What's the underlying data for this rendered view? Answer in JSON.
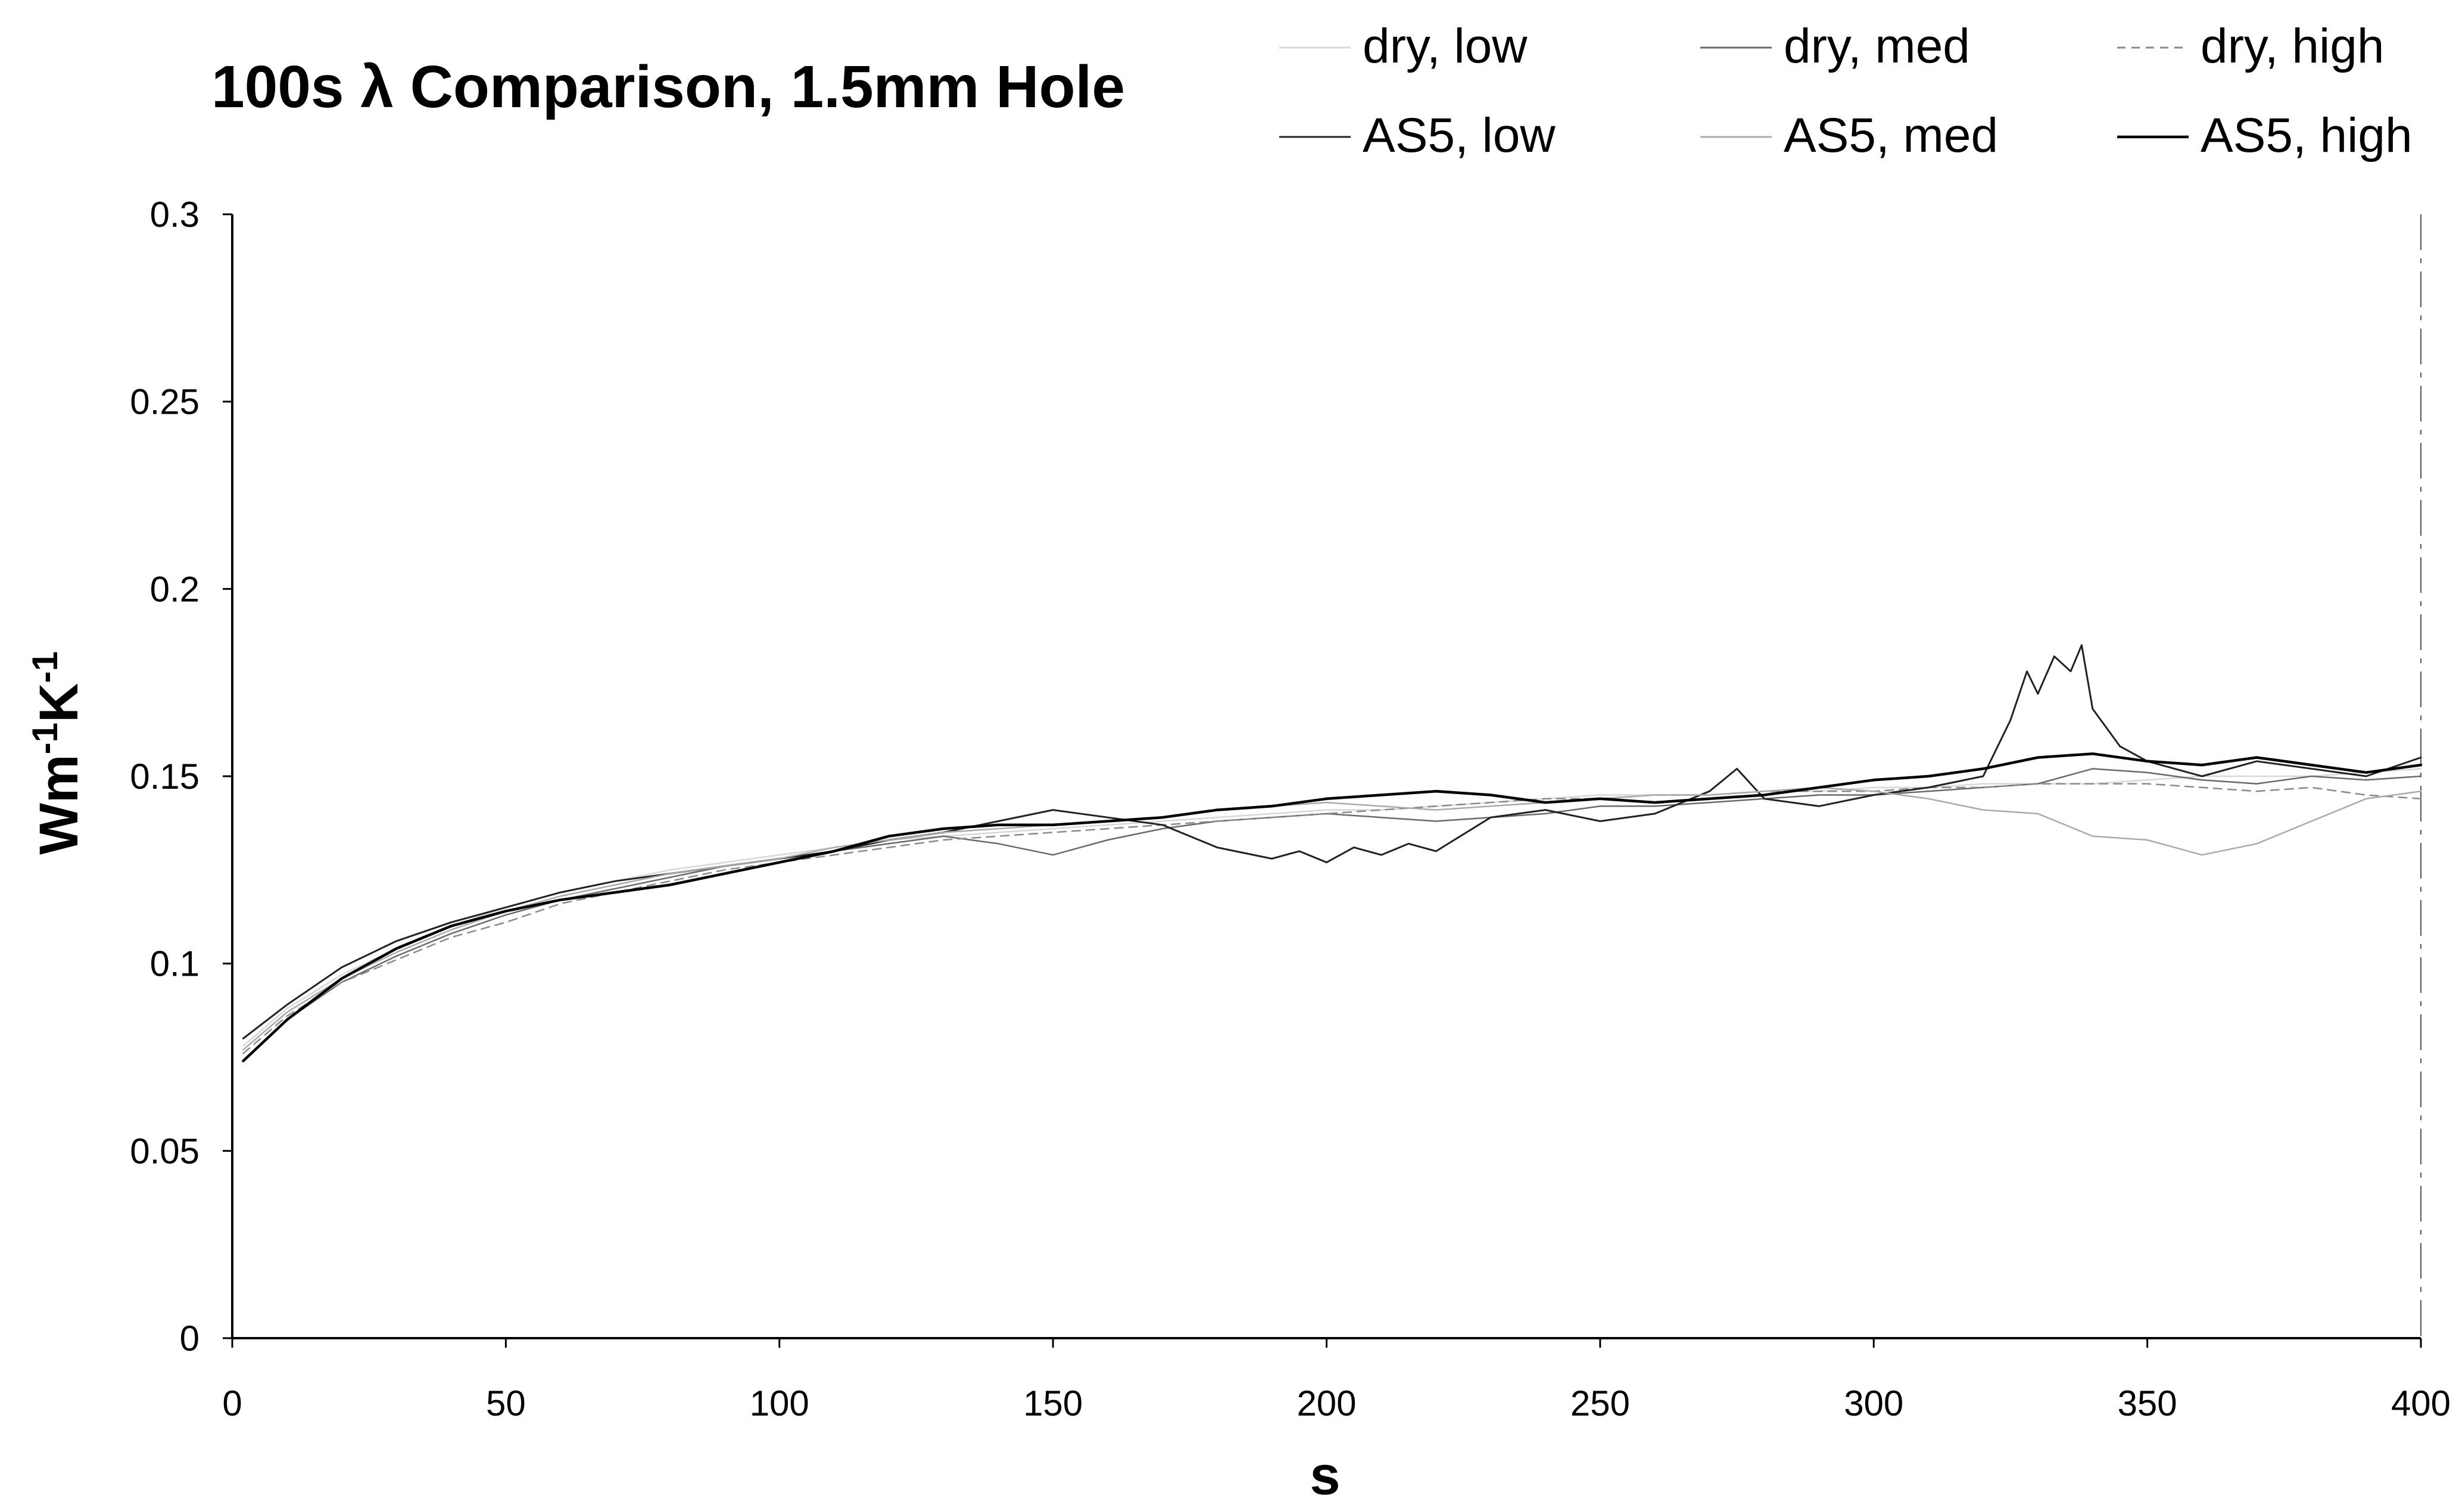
{
  "chart_data": {
    "type": "line",
    "title": "100s λ Comparison, 1.5mm Hole",
    "xlabel": "s",
    "ylabel_main": "Wm",
    "ylabel_sup1": "-1",
    "ylabel_mid": "K",
    "ylabel_sup2": "-1",
    "xlim": [
      0,
      400
    ],
    "ylim": [
      0,
      0.3
    ],
    "x_ticks": [
      {
        "value": 0,
        "label": "0"
      },
      {
        "value": 50,
        "label": "50"
      },
      {
        "value": 100,
        "label": "100"
      },
      {
        "value": 150,
        "label": "150"
      },
      {
        "value": 200,
        "label": "200"
      },
      {
        "value": 250,
        "label": "250"
      },
      {
        "value": 300,
        "label": "300"
      },
      {
        "value": 350,
        "label": "350"
      },
      {
        "value": 400,
        "label": "400"
      }
    ],
    "y_ticks": [
      {
        "value": 0,
        "label": "0"
      },
      {
        "value": 0.05,
        "label": "0.05"
      },
      {
        "value": 0.1,
        "label": "0.1"
      },
      {
        "value": 0.15,
        "label": "0.15"
      },
      {
        "value": 0.2,
        "label": "0.2"
      },
      {
        "value": 0.25,
        "label": "0.25"
      },
      {
        "value": 0.3,
        "label": "0.3"
      }
    ],
    "grid": false,
    "legend_position": "top-right",
    "series": [
      {
        "name": "dry, low",
        "color": "#d8d8d8",
        "stroke_width": 2.5,
        "dash": "",
        "x": [
          2,
          10,
          20,
          30,
          40,
          50,
          60,
          70,
          80,
          90,
          100,
          110,
          120,
          130,
          140,
          150,
          160,
          170,
          180,
          190,
          200,
          210,
          220,
          230,
          240,
          250,
          260,
          270,
          280,
          290,
          300,
          310,
          320,
          330,
          340,
          350,
          360,
          370,
          380,
          390,
          400
        ],
        "y": [
          0.078,
          0.088,
          0.097,
          0.104,
          0.11,
          0.115,
          0.119,
          0.122,
          0.125,
          0.127,
          0.129,
          0.131,
          0.133,
          0.134,
          0.135,
          0.136,
          0.137,
          0.138,
          0.139,
          0.14,
          0.141,
          0.141,
          0.142,
          0.143,
          0.144,
          0.145,
          0.145,
          0.145,
          0.146,
          0.146,
          0.147,
          0.147,
          0.148,
          0.148,
          0.148,
          0.149,
          0.15,
          0.15,
          0.15,
          0.151,
          0.152
        ]
      },
      {
        "name": "dry, med",
        "color": "#6a6a6a",
        "stroke_width": 2.5,
        "dash": "",
        "x": [
          2,
          10,
          20,
          30,
          40,
          50,
          60,
          70,
          80,
          90,
          100,
          110,
          120,
          130,
          140,
          150,
          160,
          170,
          180,
          190,
          200,
          210,
          220,
          230,
          240,
          250,
          260,
          270,
          280,
          290,
          300,
          310,
          320,
          330,
          340,
          350,
          360,
          370,
          380,
          390,
          400
        ],
        "y": [
          0.074,
          0.085,
          0.095,
          0.102,
          0.108,
          0.113,
          0.117,
          0.12,
          0.123,
          0.126,
          0.128,
          0.13,
          0.132,
          0.134,
          0.132,
          0.129,
          0.133,
          0.136,
          0.138,
          0.139,
          0.14,
          0.139,
          0.138,
          0.139,
          0.14,
          0.142,
          0.142,
          0.143,
          0.144,
          0.145,
          0.145,
          0.146,
          0.147,
          0.148,
          0.152,
          0.151,
          0.149,
          0.148,
          0.15,
          0.149,
          0.15
        ]
      },
      {
        "name": "dry, high",
        "color": "#8a8a8a",
        "stroke_width": 2.5,
        "dash": "14,10",
        "x": [
          2,
          10,
          20,
          30,
          40,
          50,
          60,
          70,
          80,
          90,
          100,
          110,
          120,
          130,
          140,
          150,
          160,
          170,
          180,
          190,
          200,
          210,
          220,
          230,
          240,
          250,
          260,
          270,
          280,
          290,
          300,
          310,
          320,
          330,
          340,
          350,
          360,
          370,
          380,
          390,
          400
        ],
        "y": [
          0.076,
          0.086,
          0.095,
          0.101,
          0.107,
          0.111,
          0.116,
          0.119,
          0.122,
          0.125,
          0.127,
          0.129,
          0.131,
          0.133,
          0.134,
          0.135,
          0.136,
          0.137,
          0.138,
          0.139,
          0.14,
          0.141,
          0.142,
          0.143,
          0.144,
          0.144,
          0.145,
          0.145,
          0.146,
          0.146,
          0.146,
          0.147,
          0.147,
          0.148,
          0.148,
          0.148,
          0.147,
          0.146,
          0.147,
          0.145,
          0.144
        ]
      },
      {
        "name": "AS5, low",
        "color": "#222222",
        "stroke_width": 3,
        "dash": "",
        "x": [
          2,
          10,
          20,
          30,
          40,
          50,
          60,
          70,
          80,
          90,
          100,
          110,
          120,
          130,
          140,
          150,
          160,
          170,
          180,
          190,
          195,
          200,
          205,
          210,
          215,
          220,
          230,
          240,
          250,
          260,
          270,
          275,
          280,
          290,
          300,
          310,
          320,
          325,
          328,
          330,
          333,
          336,
          338,
          340,
          345,
          350,
          360,
          370,
          380,
          390,
          400
        ],
        "y": [
          0.08,
          0.089,
          0.099,
          0.106,
          0.111,
          0.115,
          0.119,
          0.122,
          0.124,
          0.126,
          0.128,
          0.13,
          0.133,
          0.135,
          0.138,
          0.141,
          0.139,
          0.137,
          0.131,
          0.128,
          0.13,
          0.127,
          0.131,
          0.129,
          0.132,
          0.13,
          0.139,
          0.141,
          0.138,
          0.14,
          0.146,
          0.152,
          0.144,
          0.142,
          0.145,
          0.147,
          0.15,
          0.165,
          0.178,
          0.172,
          0.182,
          0.178,
          0.185,
          0.168,
          0.158,
          0.154,
          0.15,
          0.154,
          0.152,
          0.15,
          0.155
        ]
      },
      {
        "name": "AS5, med",
        "color": "#aaaaaa",
        "stroke_width": 2.5,
        "dash": "",
        "x": [
          2,
          10,
          20,
          30,
          40,
          50,
          60,
          70,
          80,
          90,
          100,
          110,
          120,
          130,
          140,
          150,
          160,
          170,
          180,
          190,
          200,
          210,
          220,
          230,
          240,
          250,
          260,
          270,
          280,
          290,
          300,
          310,
          320,
          330,
          340,
          350,
          360,
          370,
          380,
          390,
          400
        ],
        "y": [
          0.077,
          0.087,
          0.096,
          0.103,
          0.109,
          0.114,
          0.118,
          0.121,
          0.124,
          0.126,
          0.128,
          0.131,
          0.133,
          0.135,
          0.136,
          0.137,
          0.138,
          0.139,
          0.141,
          0.142,
          0.143,
          0.142,
          0.141,
          0.142,
          0.143,
          0.144,
          0.145,
          0.145,
          0.146,
          0.147,
          0.146,
          0.144,
          0.141,
          0.14,
          0.134,
          0.133,
          0.129,
          0.132,
          0.138,
          0.144,
          0.146
        ]
      },
      {
        "name": "AS5, high",
        "color": "#000000",
        "stroke_width": 4.5,
        "dash": "",
        "x": [
          2,
          10,
          20,
          30,
          40,
          50,
          60,
          70,
          80,
          90,
          100,
          110,
          120,
          130,
          140,
          150,
          160,
          170,
          180,
          190,
          200,
          210,
          220,
          230,
          240,
          250,
          260,
          270,
          280,
          290,
          300,
          310,
          320,
          330,
          340,
          350,
          360,
          370,
          380,
          390,
          400
        ],
        "y": [
          0.074,
          0.085,
          0.096,
          0.104,
          0.11,
          0.114,
          0.117,
          0.119,
          0.121,
          0.124,
          0.127,
          0.13,
          0.134,
          0.136,
          0.137,
          0.137,
          0.138,
          0.139,
          0.141,
          0.142,
          0.144,
          0.145,
          0.146,
          0.145,
          0.143,
          0.144,
          0.143,
          0.144,
          0.145,
          0.147,
          0.149,
          0.15,
          0.152,
          0.155,
          0.156,
          0.154,
          0.153,
          0.155,
          0.153,
          0.151,
          0.153
        ]
      }
    ]
  }
}
